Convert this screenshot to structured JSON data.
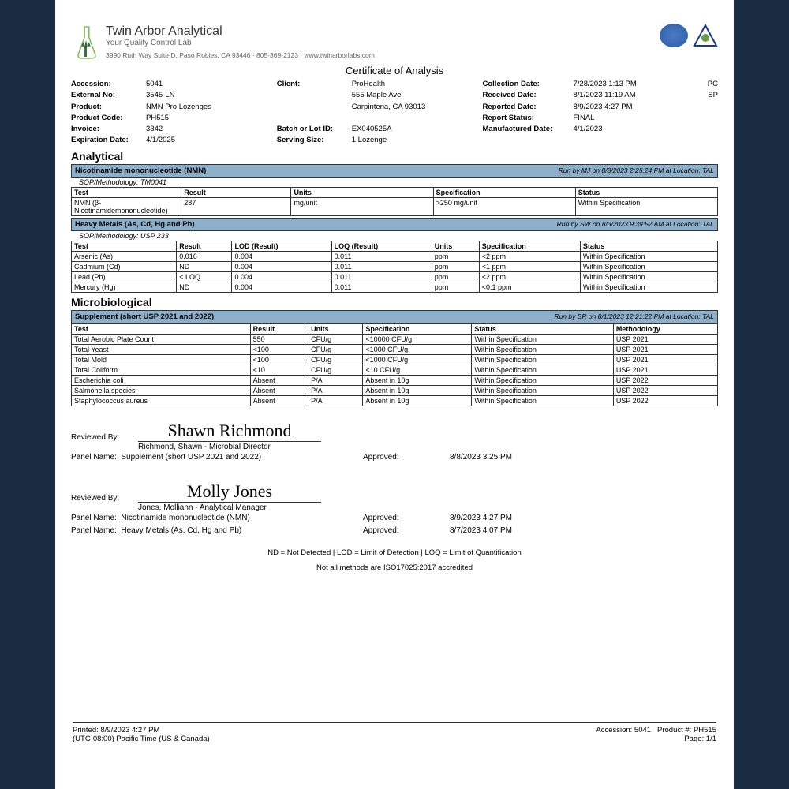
{
  "company": {
    "name": "Twin Arbor Analytical",
    "tagline": "Your Quality Control Lab",
    "address": "3990 Ruth Way Suite D, Paso Robles, CA 93446  ·  805-369-2123  ·  www.twinarborlabs.com"
  },
  "title": "Certificate of Analysis",
  "info": {
    "accession": "5041",
    "external_no": "3545-LN",
    "product": "NMN Pro Lozenges",
    "product_code": "PH515",
    "invoice": "3342",
    "expiration": "4/1/2025",
    "client": "ProHealth",
    "client_addr1": "555 Maple Ave",
    "client_addr2": "Carpinteria, CA 93013",
    "batch": "EX040525A",
    "serving": "1 Lozenge",
    "collection": "7/28/2023 1:13 PM",
    "collection_by": "PC",
    "received": "8/1/2023 11:19 AM",
    "received_by": "SP",
    "reported": "8/9/2023 4:27 PM",
    "status": "FINAL",
    "manufactured": "4/1/2023"
  },
  "sections": {
    "analytical": "Analytical",
    "micro": "Microbiological"
  },
  "panels": {
    "nmn": {
      "title": "Nicotinamide mononucleotide (NMN)",
      "run": "Run by MJ on 8/8/2023 2:25:24 PM at Location: TAL",
      "sop": "SOP/Methodology: TM0041",
      "headers": [
        "Test",
        "Result",
        "Units",
        "Specification",
        "Status"
      ],
      "rows": [
        [
          "NMN (β-Nicotinamidemononucleotide)",
          "287",
          "mg/unit",
          ">250 mg/unit",
          "Within Specification"
        ]
      ]
    },
    "metals": {
      "title": "Heavy Metals (As, Cd, Hg and Pb)",
      "run": "Run by SW on 8/3/2023 9:39:52 AM at Location: TAL",
      "sop": "SOP/Methodology: USP 233",
      "headers": [
        "Test",
        "Result",
        "LOD (Result)",
        "LOQ (Result)",
        "Units",
        "Specification",
        "Status"
      ],
      "rows": [
        [
          "Arsenic (As)",
          "0.016",
          "0.004",
          "0.011",
          "ppm",
          "<2 ppm",
          "Within Specification"
        ],
        [
          "Cadmium (Cd)",
          "ND",
          "0.004",
          "0.011",
          "ppm",
          "<1 ppm",
          "Within Specification"
        ],
        [
          "Lead (Pb)",
          "< LOQ",
          "0.004",
          "0.011",
          "ppm",
          "<2 ppm",
          "Within Specification"
        ],
        [
          "Mercury (Hg)",
          "ND",
          "0.004",
          "0.011",
          "ppm",
          "<0.1 ppm",
          "Within Specification"
        ]
      ]
    },
    "supp": {
      "title": "Supplement (short USP 2021 and 2022)",
      "run": "Run by SR on 8/1/2023 12:21:22 PM at Location: TAL",
      "headers": [
        "Test",
        "Result",
        "Units",
        "Specification",
        "Status",
        "Methodology"
      ],
      "rows": [
        [
          "Total Aerobic Plate Count",
          "550",
          "CFU/g",
          "<10000 CFU/g",
          "Within Specification",
          "USP 2021"
        ],
        [
          "Total Yeast",
          "<100",
          "CFU/g",
          "<1000 CFU/g",
          "Within Specification",
          "USP 2021"
        ],
        [
          "Total Mold",
          "<100",
          "CFU/g",
          "<1000 CFU/g",
          "Within Specification",
          "USP 2021"
        ],
        [
          "Total Coliform",
          "<10",
          "CFU/g",
          "<10 CFU/g",
          "Within Specification",
          "USP 2021"
        ],
        [
          "Escherichia coli",
          "Absent",
          "P/A",
          "Absent in 10g",
          "Within Specification",
          "USP 2022"
        ],
        [
          "Salmonella species",
          "Absent",
          "P/A",
          "Absent in 10g",
          "Within Specification",
          "USP 2022"
        ],
        [
          "Staphylococcus aureus",
          "Absent",
          "P/A",
          "Absent in 10g",
          "Within Specification",
          "USP 2022"
        ]
      ]
    }
  },
  "sigs": {
    "s1": {
      "script": "Shawn Richmond",
      "name": "Richmond, Shawn   -   Microbial Director"
    },
    "s2": {
      "script": "Molly Jones",
      "name": "Jones, Molliann   -   Analytical Manager"
    },
    "reviewed": "Reviewed By:",
    "panel_label": "Panel Name:",
    "approved_label": "Approved:",
    "approvals": [
      {
        "panel": "Supplement (short USP 2021 and 2022)",
        "time": "8/8/2023 3:25 PM"
      },
      {
        "panel": "Nicotinamide mononucleotide (NMN)",
        "time": "8/9/2023 4:27 PM"
      },
      {
        "panel": "Heavy Metals (As, Cd, Hg and Pb)",
        "time": "8/7/2023 4:07 PM"
      }
    ]
  },
  "legend": {
    "l1": "ND = Not Detected    |    LOD = Limit of Detection    |    LOQ = Limit of Quantification",
    "l2": "Not all methods are ISO17025:2017 accredited"
  },
  "footer": {
    "printed": "Printed: 8/9/2023 4:27 PM",
    "tz": "(UTC-08:00) Pacific Time (US & Canada)",
    "acc": "Accession: 5041",
    "prod": "Product #: PH515",
    "page": "Page: 1/1"
  }
}
